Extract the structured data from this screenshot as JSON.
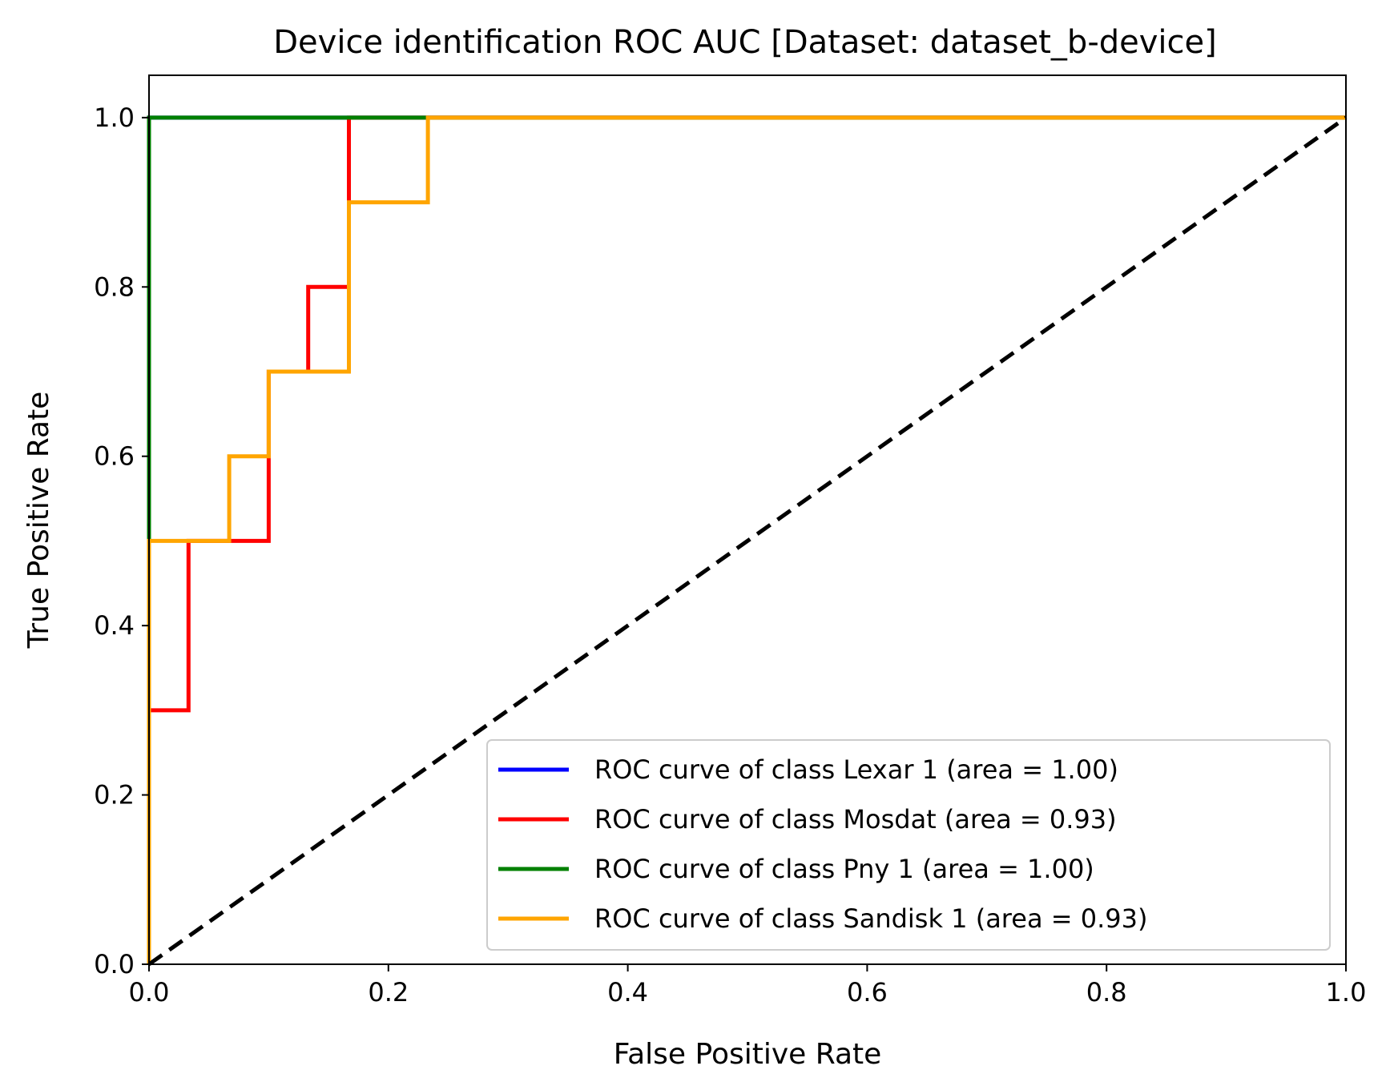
{
  "chart_data": {
    "type": "line",
    "title": "Device identification ROC AUC [Dataset: dataset_b-device]",
    "xlabel": "False Positive Rate",
    "ylabel": "True Positive Rate",
    "xlim": [
      0.0,
      1.0
    ],
    "ylim": [
      0.0,
      1.05
    ],
    "x_ticks": [
      "0.0",
      "0.2",
      "0.4",
      "0.6",
      "0.8",
      "1.0"
    ],
    "y_ticks": [
      "0.0",
      "0.2",
      "0.4",
      "0.6",
      "0.8",
      "1.0"
    ],
    "grid": false,
    "legend_position": "lower-right",
    "series": [
      {
        "name": "ROC curve of class Lexar 1 (area = 1.00)",
        "color": "#0000ff",
        "x": [
          0.0,
          0.0,
          1.0
        ],
        "y": [
          0.0,
          1.0,
          1.0
        ]
      },
      {
        "name": "ROC curve of class Mosdat (area = 0.93)",
        "color": "#ff0000",
        "x": [
          0.0,
          0.0,
          0.033,
          0.033,
          0.1,
          0.1,
          0.133,
          0.133,
          0.167,
          0.167,
          1.0
        ],
        "y": [
          0.0,
          0.3,
          0.3,
          0.5,
          0.5,
          0.7,
          0.7,
          0.8,
          0.8,
          1.0,
          1.0
        ]
      },
      {
        "name": "ROC curve of class Pny 1 (area = 1.00)",
        "color": "#008000",
        "x": [
          0.0,
          0.0,
          1.0
        ],
        "y": [
          0.0,
          1.0,
          1.0
        ]
      },
      {
        "name": "ROC curve of class Sandisk 1 (area = 0.93)",
        "color": "#ffa500",
        "x": [
          0.0,
          0.0,
          0.067,
          0.067,
          0.1,
          0.1,
          0.167,
          0.167,
          0.233,
          0.233,
          1.0
        ],
        "y": [
          0.0,
          0.5,
          0.5,
          0.6,
          0.6,
          0.7,
          0.7,
          0.9,
          0.9,
          1.0,
          1.0
        ]
      }
    ],
    "reference_line": {
      "color": "#000000",
      "x": [
        0.0,
        1.0
      ],
      "y": [
        0.0,
        1.0
      ]
    }
  }
}
